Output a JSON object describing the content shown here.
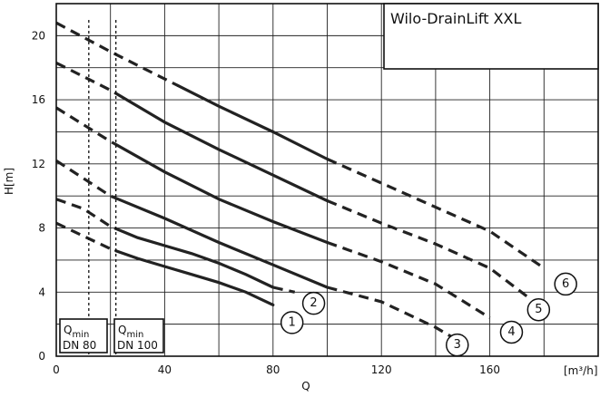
{
  "chart_data": {
    "type": "line",
    "title": "Wilo-DrainLift XXL",
    "xlabel": "Q",
    "ylabel": "H[m]",
    "x_unit": "[m³/h]",
    "xlim": [
      0,
      200
    ],
    "ylim": [
      0,
      22
    ],
    "x_ticks": [
      0,
      40,
      80,
      120,
      160
    ],
    "y_ticks": [
      0,
      4,
      8,
      12,
      16,
      20
    ],
    "grid": true,
    "qmin": [
      {
        "q": 12,
        "label_main": "Q",
        "label_sub": "min",
        "label_dn": "DN 80"
      },
      {
        "q": 22,
        "label_main": "Q",
        "label_sub": "min",
        "label_dn": "DN 100"
      }
    ],
    "series": [
      {
        "label": "1",
        "points": [
          [
            0,
            8.3
          ],
          [
            10,
            7.5
          ],
          [
            20,
            6.7
          ],
          [
            30,
            6.1
          ],
          [
            40,
            5.6
          ],
          [
            50,
            5.1
          ],
          [
            60,
            4.6
          ],
          [
            70,
            4.0
          ],
          [
            80,
            3.2
          ]
        ],
        "solid_range": [
          22,
          80
        ],
        "label_at": [
          87,
          2.1
        ]
      },
      {
        "label": "2",
        "points": [
          [
            0,
            9.8
          ],
          [
            10,
            9.2
          ],
          [
            20,
            8.1
          ],
          [
            30,
            7.4
          ],
          [
            40,
            6.9
          ],
          [
            50,
            6.4
          ],
          [
            60,
            5.8
          ],
          [
            70,
            5.1
          ],
          [
            80,
            4.3
          ],
          [
            88,
            4.0
          ]
        ],
        "solid_range": [
          22,
          80
        ],
        "label_at": [
          95,
          3.3
        ]
      },
      {
        "label": "3",
        "points": [
          [
            0,
            12.2
          ],
          [
            20,
            10.0
          ],
          [
            40,
            8.6
          ],
          [
            60,
            7.1
          ],
          [
            80,
            5.7
          ],
          [
            100,
            4.3
          ],
          [
            120,
            3.4
          ],
          [
            140,
            1.8
          ],
          [
            146,
            1.2
          ]
        ],
        "solid_range": [
          22,
          100
        ],
        "label_at": [
          148,
          0.7
        ]
      },
      {
        "label": "4",
        "points": [
          [
            0,
            15.5
          ],
          [
            20,
            13.4
          ],
          [
            40,
            11.5
          ],
          [
            60,
            9.8
          ],
          [
            80,
            8.4
          ],
          [
            100,
            7.1
          ],
          [
            120,
            5.9
          ],
          [
            140,
            4.5
          ],
          [
            160,
            2.4
          ]
        ],
        "solid_range": [
          22,
          100
        ],
        "label_at": [
          168,
          1.5
        ]
      },
      {
        "label": "5",
        "points": [
          [
            0,
            18.3
          ],
          [
            20,
            16.6
          ],
          [
            40,
            14.6
          ],
          [
            60,
            12.9
          ],
          [
            80,
            11.3
          ],
          [
            100,
            9.7
          ],
          [
            120,
            8.3
          ],
          [
            140,
            7.0
          ],
          [
            160,
            5.5
          ],
          [
            174,
            3.7
          ]
        ],
        "solid_range": [
          22,
          100
        ],
        "label_at": [
          178,
          2.9
        ]
      },
      {
        "label": "6",
        "points": [
          [
            0,
            20.8
          ],
          [
            20,
            19.0
          ],
          [
            40,
            17.3
          ],
          [
            60,
            15.6
          ],
          [
            80,
            14.0
          ],
          [
            100,
            12.3
          ],
          [
            120,
            10.8
          ],
          [
            140,
            9.3
          ],
          [
            160,
            7.8
          ],
          [
            180,
            5.5
          ]
        ],
        "solid_range": [
          45,
          100
        ],
        "label_at": [
          188,
          4.5
        ]
      }
    ]
  }
}
